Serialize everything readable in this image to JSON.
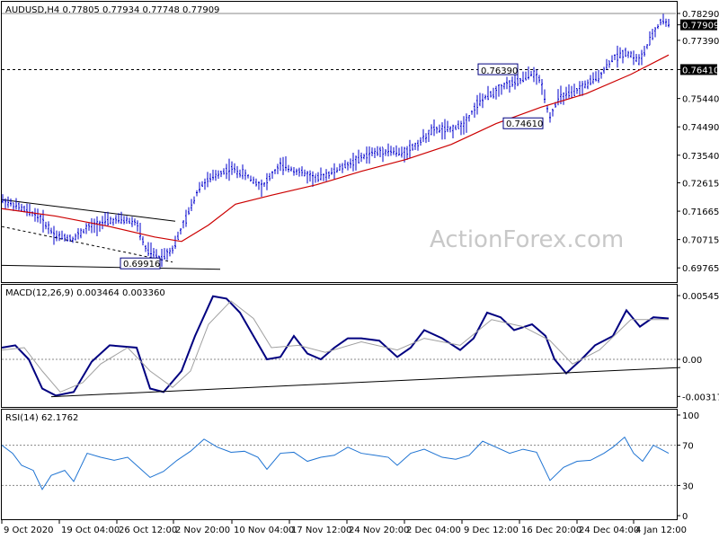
{
  "chart_data": [
    {
      "type": "candlestick",
      "title": "AUDUSD,H4  0.77805 0.77934 0.77748 0.77909",
      "watermark": "ActionForex.com",
      "ylim": [
        0.6935,
        0.785
      ],
      "y_ticks": [
        "0.78290",
        "0.77909",
        "0.77390",
        "0.76410",
        "0.75440",
        "0.74490",
        "0.73540",
        "0.72615",
        "0.71665",
        "0.70715",
        "0.69765"
      ],
      "current_price": "0.77909",
      "levels": [
        {
          "value": 0.7829,
          "label": "0.78290"
        },
        {
          "value": 0.7641,
          "label": "0.76410",
          "style": "dashed"
        }
      ],
      "annotations": [
        {
          "label": "0.69916",
          "value": 0.69916
        },
        {
          "label": "0.76390",
          "value": 0.7639
        },
        {
          "label": "0.74610",
          "value": 0.7461
        }
      ],
      "moving_average_color": "#cc0000",
      "candle_color": "#0000cc",
      "segments": [
        {
          "x": 0,
          "y": 0.7205
        },
        {
          "x": 20,
          "y": 0.7178
        },
        {
          "x": 40,
          "y": 0.7152
        },
        {
          "x": 60,
          "y": 0.7085
        },
        {
          "x": 80,
          "y": 0.7075
        },
        {
          "x": 95,
          "y": 0.711
        },
        {
          "x": 115,
          "y": 0.7132
        },
        {
          "x": 135,
          "y": 0.7138
        },
        {
          "x": 150,
          "y": 0.7128
        },
        {
          "x": 160,
          "y": 0.704
        },
        {
          "x": 175,
          "y": 0.701
        },
        {
          "x": 190,
          "y": 0.704
        },
        {
          "x": 205,
          "y": 0.714
        },
        {
          "x": 220,
          "y": 0.725
        },
        {
          "x": 240,
          "y": 0.729
        },
        {
          "x": 255,
          "y": 0.731
        },
        {
          "x": 270,
          "y": 0.729
        },
        {
          "x": 290,
          "y": 0.725
        },
        {
          "x": 310,
          "y": 0.732
        },
        {
          "x": 330,
          "y": 0.73
        },
        {
          "x": 350,
          "y": 0.7275
        },
        {
          "x": 370,
          "y": 0.73
        },
        {
          "x": 390,
          "y": 0.733
        },
        {
          "x": 410,
          "y": 0.736
        },
        {
          "x": 430,
          "y": 0.737
        },
        {
          "x": 445,
          "y": 0.736
        },
        {
          "x": 460,
          "y": 0.7385
        },
        {
          "x": 480,
          "y": 0.744
        },
        {
          "x": 500,
          "y": 0.744
        },
        {
          "x": 515,
          "y": 0.746
        },
        {
          "x": 530,
          "y": 0.753
        },
        {
          "x": 545,
          "y": 0.756
        },
        {
          "x": 560,
          "y": 0.759
        },
        {
          "x": 575,
          "y": 0.76
        },
        {
          "x": 590,
          "y": 0.763
        },
        {
          "x": 600,
          "y": 0.76
        },
        {
          "x": 610,
          "y": 0.748
        },
        {
          "x": 620,
          "y": 0.755
        },
        {
          "x": 635,
          "y": 0.756
        },
        {
          "x": 650,
          "y": 0.759
        },
        {
          "x": 665,
          "y": 0.762
        },
        {
          "x": 680,
          "y": 0.768
        },
        {
          "x": 695,
          "y": 0.77
        },
        {
          "x": 710,
          "y": 0.767
        },
        {
          "x": 725,
          "y": 0.776
        },
        {
          "x": 735,
          "y": 0.781
        },
        {
          "x": 742,
          "y": 0.7791
        }
      ],
      "ma": [
        {
          "x": 0,
          "y": 0.7175
        },
        {
          "x": 60,
          "y": 0.715
        },
        {
          "x": 120,
          "y": 0.7115
        },
        {
          "x": 170,
          "y": 0.708
        },
        {
          "x": 200,
          "y": 0.7065
        },
        {
          "x": 230,
          "y": 0.712
        },
        {
          "x": 260,
          "y": 0.719
        },
        {
          "x": 300,
          "y": 0.722
        },
        {
          "x": 350,
          "y": 0.7255
        },
        {
          "x": 400,
          "y": 0.73
        },
        {
          "x": 450,
          "y": 0.734
        },
        {
          "x": 500,
          "y": 0.739
        },
        {
          "x": 550,
          "y": 0.746
        },
        {
          "x": 600,
          "y": 0.7515
        },
        {
          "x": 650,
          "y": 0.756
        },
        {
          "x": 700,
          "y": 0.7625
        },
        {
          "x": 742,
          "y": 0.769
        }
      ],
      "trendlines": [
        {
          "from": [
            0,
            0.7205
          ],
          "to": [
            193,
            0.7133
          ],
          "style": "solid"
        },
        {
          "from": [
            0,
            0.7115
          ],
          "to": [
            190,
            0.6996
          ],
          "style": "dashed"
        },
        {
          "from": [
            0,
            0.6985
          ],
          "to": [
            243,
            0.6972
          ],
          "style": "solid"
        }
      ]
    },
    {
      "type": "line",
      "title": "MACD(12,26,9) 0.003464 0.003360",
      "ylim": [
        -0.004,
        0.006
      ],
      "y_ticks": [
        "0.005456",
        "0.00",
        "-0.003178"
      ],
      "series": [
        {
          "color": "#000080",
          "points": [
            {
              "x": 0,
              "y": 0.001
            },
            {
              "x": 15,
              "y": 0.0012
            },
            {
              "x": 30,
              "y": 0.0
            },
            {
              "x": 45,
              "y": -0.0025
            },
            {
              "x": 60,
              "y": -0.0031
            },
            {
              "x": 80,
              "y": -0.0028
            },
            {
              "x": 100,
              "y": -0.0002
            },
            {
              "x": 120,
              "y": 0.0012
            },
            {
              "x": 150,
              "y": 0.001
            },
            {
              "x": 165,
              "y": -0.0025
            },
            {
              "x": 180,
              "y": -0.0028
            },
            {
              "x": 200,
              "y": -0.001
            },
            {
              "x": 215,
              "y": 0.002
            },
            {
              "x": 235,
              "y": 0.0054
            },
            {
              "x": 250,
              "y": 0.0052
            },
            {
              "x": 265,
              "y": 0.004
            },
            {
              "x": 280,
              "y": 0.002
            },
            {
              "x": 295,
              "y": 0.0
            },
            {
              "x": 310,
              "y": 0.0002
            },
            {
              "x": 325,
              "y": 0.002
            },
            {
              "x": 340,
              "y": 0.0005
            },
            {
              "x": 355,
              "y": 0.0
            },
            {
              "x": 370,
              "y": 0.001
            },
            {
              "x": 385,
              "y": 0.0018
            },
            {
              "x": 400,
              "y": 0.0018
            },
            {
              "x": 420,
              "y": 0.0016
            },
            {
              "x": 440,
              "y": 0.0002
            },
            {
              "x": 455,
              "y": 0.001
            },
            {
              "x": 470,
              "y": 0.0025
            },
            {
              "x": 490,
              "y": 0.0018
            },
            {
              "x": 510,
              "y": 0.0008
            },
            {
              "x": 525,
              "y": 0.0018
            },
            {
              "x": 540,
              "y": 0.004
            },
            {
              "x": 555,
              "y": 0.0036
            },
            {
              "x": 570,
              "y": 0.0025
            },
            {
              "x": 590,
              "y": 0.003
            },
            {
              "x": 605,
              "y": 0.002
            },
            {
              "x": 615,
              "y": 0.0
            },
            {
              "x": 628,
              "y": -0.0012
            },
            {
              "x": 645,
              "y": 0.0
            },
            {
              "x": 660,
              "y": 0.0012
            },
            {
              "x": 680,
              "y": 0.002
            },
            {
              "x": 695,
              "y": 0.0042
            },
            {
              "x": 710,
              "y": 0.0028
            },
            {
              "x": 725,
              "y": 0.0036
            },
            {
              "x": 742,
              "y": 0.0035
            }
          ]
        },
        {
          "color": "#a0a0a0",
          "points": [
            {
              "x": 0,
              "y": 0.0008
            },
            {
              "x": 25,
              "y": 0.001
            },
            {
              "x": 45,
              "y": -0.001
            },
            {
              "x": 65,
              "y": -0.0028
            },
            {
              "x": 90,
              "y": -0.002
            },
            {
              "x": 110,
              "y": -0.0004
            },
            {
              "x": 140,
              "y": 0.001
            },
            {
              "x": 165,
              "y": -0.001
            },
            {
              "x": 190,
              "y": -0.0024
            },
            {
              "x": 210,
              "y": -0.001
            },
            {
              "x": 230,
              "y": 0.003
            },
            {
              "x": 255,
              "y": 0.005
            },
            {
              "x": 280,
              "y": 0.0035
            },
            {
              "x": 300,
              "y": 0.001
            },
            {
              "x": 330,
              "y": 0.0012
            },
            {
              "x": 360,
              "y": 0.0006
            },
            {
              "x": 400,
              "y": 0.0015
            },
            {
              "x": 440,
              "y": 0.0008
            },
            {
              "x": 470,
              "y": 0.0018
            },
            {
              "x": 510,
              "y": 0.0012
            },
            {
              "x": 545,
              "y": 0.0034
            },
            {
              "x": 580,
              "y": 0.0028
            },
            {
              "x": 610,
              "y": 0.0016
            },
            {
              "x": 635,
              "y": -0.0004
            },
            {
              "x": 665,
              "y": 0.0008
            },
            {
              "x": 700,
              "y": 0.0034
            },
            {
              "x": 742,
              "y": 0.0034
            }
          ]
        }
      ],
      "trendline": {
        "from": [
          55,
          -0.0032
        ],
        "to": [
          755,
          -0.0007
        ]
      }
    },
    {
      "type": "line",
      "title": "RSI(14) 62.1762",
      "ylim": [
        0,
        100
      ],
      "y_ticks": [
        "100",
        "70",
        "30",
        "0"
      ],
      "levels": [
        70,
        30
      ],
      "series": [
        {
          "color": "#1e73d2",
          "points": [
            {
              "x": 0,
              "y": 70
            },
            {
              "x": 12,
              "y": 62
            },
            {
              "x": 22,
              "y": 50
            },
            {
              "x": 35,
              "y": 45
            },
            {
              "x": 45,
              "y": 26
            },
            {
              "x": 55,
              "y": 40
            },
            {
              "x": 70,
              "y": 45
            },
            {
              "x": 80,
              "y": 34
            },
            {
              "x": 95,
              "y": 62
            },
            {
              "x": 110,
              "y": 58
            },
            {
              "x": 125,
              "y": 55
            },
            {
              "x": 140,
              "y": 58
            },
            {
              "x": 155,
              "y": 46
            },
            {
              "x": 165,
              "y": 38
            },
            {
              "x": 180,
              "y": 44
            },
            {
              "x": 195,
              "y": 55
            },
            {
              "x": 210,
              "y": 64
            },
            {
              "x": 225,
              "y": 76
            },
            {
              "x": 240,
              "y": 68
            },
            {
              "x": 255,
              "y": 63
            },
            {
              "x": 270,
              "y": 64
            },
            {
              "x": 285,
              "y": 58
            },
            {
              "x": 295,
              "y": 46
            },
            {
              "x": 310,
              "y": 62
            },
            {
              "x": 325,
              "y": 63
            },
            {
              "x": 340,
              "y": 54
            },
            {
              "x": 355,
              "y": 58
            },
            {
              "x": 370,
              "y": 60
            },
            {
              "x": 385,
              "y": 68
            },
            {
              "x": 400,
              "y": 62
            },
            {
              "x": 415,
              "y": 60
            },
            {
              "x": 430,
              "y": 58
            },
            {
              "x": 440,
              "y": 50
            },
            {
              "x": 455,
              "y": 62
            },
            {
              "x": 470,
              "y": 66
            },
            {
              "x": 490,
              "y": 58
            },
            {
              "x": 505,
              "y": 56
            },
            {
              "x": 520,
              "y": 60
            },
            {
              "x": 535,
              "y": 74
            },
            {
              "x": 550,
              "y": 68
            },
            {
              "x": 565,
              "y": 62
            },
            {
              "x": 580,
              "y": 66
            },
            {
              "x": 595,
              "y": 63
            },
            {
              "x": 610,
              "y": 35
            },
            {
              "x": 625,
              "y": 48
            },
            {
              "x": 640,
              "y": 54
            },
            {
              "x": 655,
              "y": 55
            },
            {
              "x": 670,
              "y": 62
            },
            {
              "x": 680,
              "y": 68
            },
            {
              "x": 693,
              "y": 78
            },
            {
              "x": 703,
              "y": 62
            },
            {
              "x": 713,
              "y": 54
            },
            {
              "x": 725,
              "y": 70
            },
            {
              "x": 742,
              "y": 62
            }
          ]
        }
      ]
    }
  ],
  "x_axis_labels": [
    "9 Oct 2020",
    "19 Oct 04:00",
    "26 Oct 12:00",
    "2 Nov 20:00",
    "10 Nov 04:00",
    "17 Nov 12:00",
    "24 Nov 20:00",
    "2 Dec 04:00",
    "9 Dec 12:00",
    "16 Dec 20:00",
    "24 Dec 04:00",
    "4 Jan 12:00"
  ]
}
